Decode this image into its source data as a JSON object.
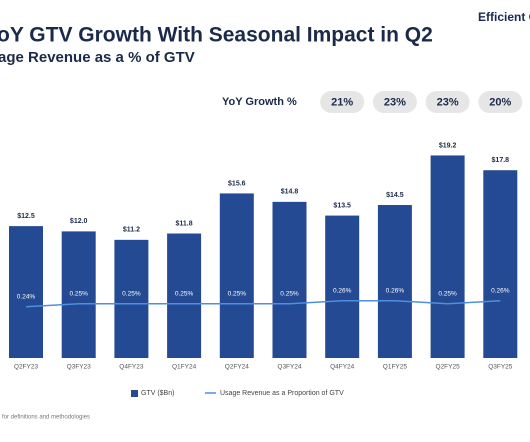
{
  "header": {
    "title": "oY GTV Growth With Seasonal Impact in Q2",
    "subtitle": "age Revenue as a % of GTV",
    "brand": "Efficient C"
  },
  "yoy_growth": {
    "label": "YoY Growth %",
    "values": [
      21,
      23,
      23,
      20
    ],
    "value_labels": [
      "21%",
      "23%",
      "23%",
      "20%"
    ]
  },
  "footnote": "for definitions and methodologies",
  "chart_data": {
    "type": "bar",
    "categories": [
      "Q2FY23",
      "Q3FY23",
      "Q4FY23",
      "Q1FY24",
      "Q2FY24",
      "Q3FY24",
      "Q4FY24",
      "Q1FY25",
      "Q2FY25",
      "Q3FY25"
    ],
    "ylim": [
      0,
      20
    ],
    "y2lim": [
      0.07,
      0.77
    ],
    "series": [
      {
        "name": "GTV ($Bn)",
        "type": "bar",
        "color": "#234a92",
        "values": [
          12.5,
          12.0,
          11.2,
          11.8,
          15.6,
          14.8,
          13.5,
          14.5,
          19.2,
          17.8
        ],
        "value_labels": [
          "$12.5",
          "$12.0",
          "$11.2",
          "$11.8",
          "$15.6",
          "$14.8",
          "$13.5",
          "$14.5",
          "$19.2",
          "$17.8"
        ]
      },
      {
        "name": "Usage Revenue as a Proportion of GTV",
        "type": "line",
        "axis": "y2",
        "color": "#4f8fe0",
        "values": [
          0.24,
          0.25,
          0.25,
          0.25,
          0.25,
          0.25,
          0.26,
          0.26,
          0.25,
          0.26
        ],
        "value_labels": [
          "0.24%",
          "0.25%",
          "0.25%",
          "0.25%",
          "0.25%",
          "0.25%",
          "0.26%",
          "0.26%",
          "0.25%",
          "0.26%"
        ]
      }
    ]
  }
}
